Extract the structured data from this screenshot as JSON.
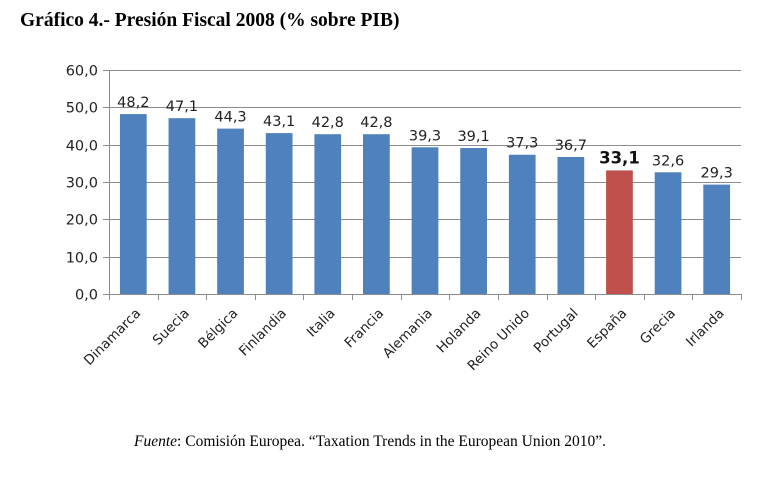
{
  "title_prefix": "Gráfico 4.- ",
  "title_main": "Presión Fiscal 2008 (% sobre PIB)",
  "source": {
    "label": "Fuente",
    "text": ": Comisión Europea. “Taxation Trends in the European Union 2010”."
  },
  "colors": {
    "bar": "#4f81bd",
    "highlight": "#c0504d",
    "grid": "#8c8c8c",
    "axis": "#8c8c8c"
  },
  "chart_data": {
    "type": "bar",
    "title": "Gráfico 4.- Presión Fiscal 2008 (% sobre PIB)",
    "xlabel": "",
    "ylabel": "",
    "ylim": [
      0,
      60
    ],
    "yticks": [
      0,
      10,
      20,
      30,
      40,
      50,
      60
    ],
    "ytick_labels": [
      "0,0",
      "10,0",
      "20,0",
      "30,0",
      "40,0",
      "50,0",
      "60,0"
    ],
    "grid": true,
    "legend": "none",
    "categories": [
      "Dinamarca",
      "Suecia",
      "Bélgica",
      "Finlandia",
      "Italia",
      "Francia",
      "Alemania",
      "Holanda",
      "Reino Unido",
      "Portugal",
      "España",
      "Grecia",
      "Irlanda"
    ],
    "values": [
      48.2,
      47.1,
      44.3,
      43.1,
      42.8,
      42.8,
      39.3,
      39.1,
      37.3,
      36.7,
      33.1,
      32.6,
      29.3
    ],
    "value_labels": [
      "48,2",
      "47,1",
      "44,3",
      "43,1",
      "42,8",
      "42,8",
      "39,3",
      "39,1",
      "37,3",
      "36,7",
      "33,1",
      "32,6",
      "29,3"
    ],
    "highlighted_category": "España",
    "annotations": [
      "Fuente: Comisión Europea. “Taxation Trends in the European Union 2010”."
    ]
  }
}
